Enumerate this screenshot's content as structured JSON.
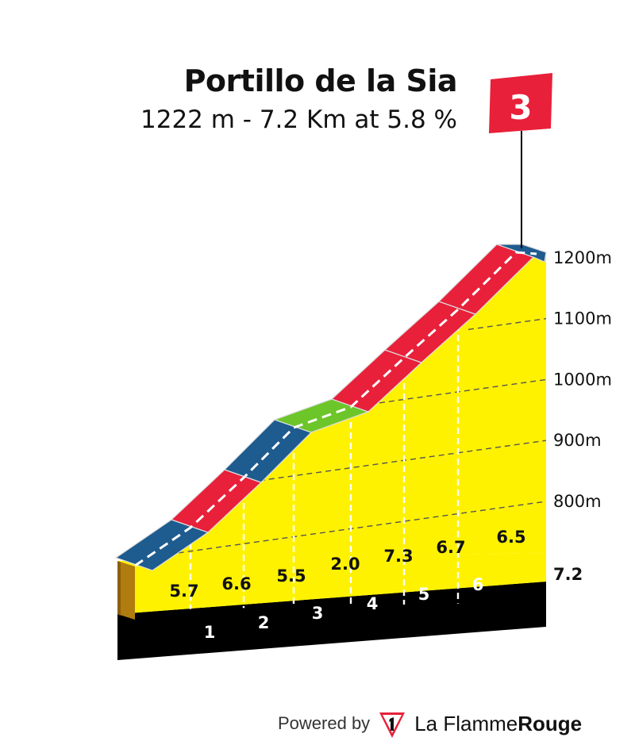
{
  "climb": {
    "name": "Portillo de la Sia",
    "summary": "1222 m - 7.2 Km at 5.8 %",
    "category": "3"
  },
  "chart_data": {
    "type": "area",
    "title": "Portillo de la Sia",
    "subtitle": "1222 m - 7.2 Km at 5.8 %",
    "x_unit": "km",
    "y_unit": "m",
    "xlim": [
      0,
      7.2
    ],
    "ylim": [
      790,
      1222
    ],
    "km_ticks": [
      "1",
      "2",
      "3",
      "4",
      "5",
      "6"
    ],
    "total_distance_label": "7.2",
    "y_ticks": [
      {
        "value": 800,
        "label": "800m"
      },
      {
        "value": 900,
        "label": "900m"
      },
      {
        "value": 1000,
        "label": "1000m"
      },
      {
        "value": 1100,
        "label": "1100m"
      },
      {
        "value": 1200,
        "label": "1200m"
      }
    ],
    "segments": [
      {
        "from_km": 0,
        "to_km": 1,
        "gradient": "5.7",
        "color": "#1e5b8f"
      },
      {
        "from_km": 1,
        "to_km": 2,
        "gradient": "6.6",
        "color": "#e8203a"
      },
      {
        "from_km": 2,
        "to_km": 3,
        "gradient": "5.5",
        "color": "#1e5b8f"
      },
      {
        "from_km": 3,
        "to_km": 4,
        "gradient": "2.0",
        "color": "#6cc62a"
      },
      {
        "from_km": 4,
        "to_km": 5,
        "gradient": "7.3",
        "color": "#e8203a"
      },
      {
        "from_km": 5,
        "to_km": 6,
        "gradient": "6.7",
        "color": "#e8203a"
      },
      {
        "from_km": 6,
        "to_km": 7.2,
        "gradient": "6.5",
        "color": "#e8203a"
      }
    ],
    "summit_marker": {
      "km": 7.0,
      "label": "3",
      "color": "#e8203a"
    }
  },
  "footer": {
    "powered_by": "Powered by",
    "brand_light": "La Flamme",
    "brand_bold": "Rouge"
  }
}
